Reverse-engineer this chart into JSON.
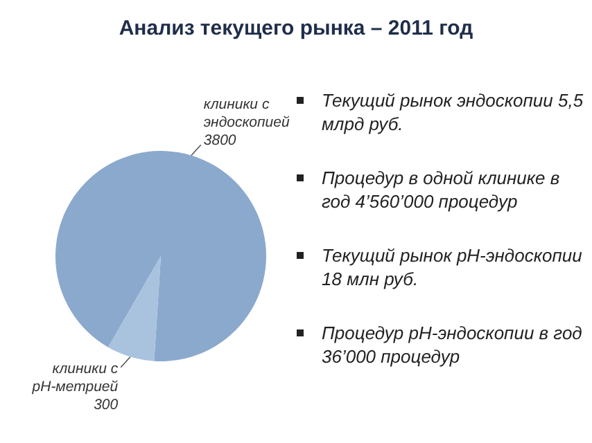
{
  "chart_data": {
    "type": "pie",
    "title": "Анализ текущего рынка – 2011 год",
    "categories": [
      "клиники с эндоскопией",
      "клиники с pH-метрией"
    ],
    "values": [
      3800,
      300
    ],
    "colors": [
      "#8ba9cd",
      "#a9c2de"
    ],
    "data_labels": true,
    "annotations": [
      "Текущий рынок эндоскопии 5,5 млрд руб.",
      "Процедур в одной клинике в год 4’560’000 процедур",
      "Текущий рынок  pH-эндоскопии 18 млн руб.",
      "Процедур pH-эндоскопии в год  36’000 процедур"
    ]
  }
}
